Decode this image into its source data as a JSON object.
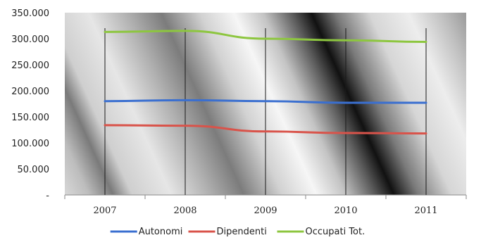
{
  "chart_data": {
    "type": "line",
    "categories": [
      "2007",
      "2008",
      "2009",
      "2010",
      "2011"
    ],
    "y_ticks": [
      "-",
      "50.000",
      "100.000",
      "150.000",
      "200.000",
      "250.000",
      "300.000",
      "350.000"
    ],
    "ylim": [
      0,
      350000
    ],
    "grid": "vertical lines at categories",
    "legend_position": "bottom",
    "series": [
      {
        "name": "Autonomi",
        "color": "#3a6fd0",
        "values": [
          180000,
          182000,
          180000,
          177000,
          177000
        ]
      },
      {
        "name": "Dipendenti",
        "color": "#d9534a",
        "values": [
          134000,
          133000,
          122000,
          119000,
          118000
        ]
      },
      {
        "name": "Occupati Tot.",
        "color": "#8dc63f",
        "values": [
          313000,
          315000,
          300000,
          297000,
          294000
        ]
      }
    ]
  }
}
